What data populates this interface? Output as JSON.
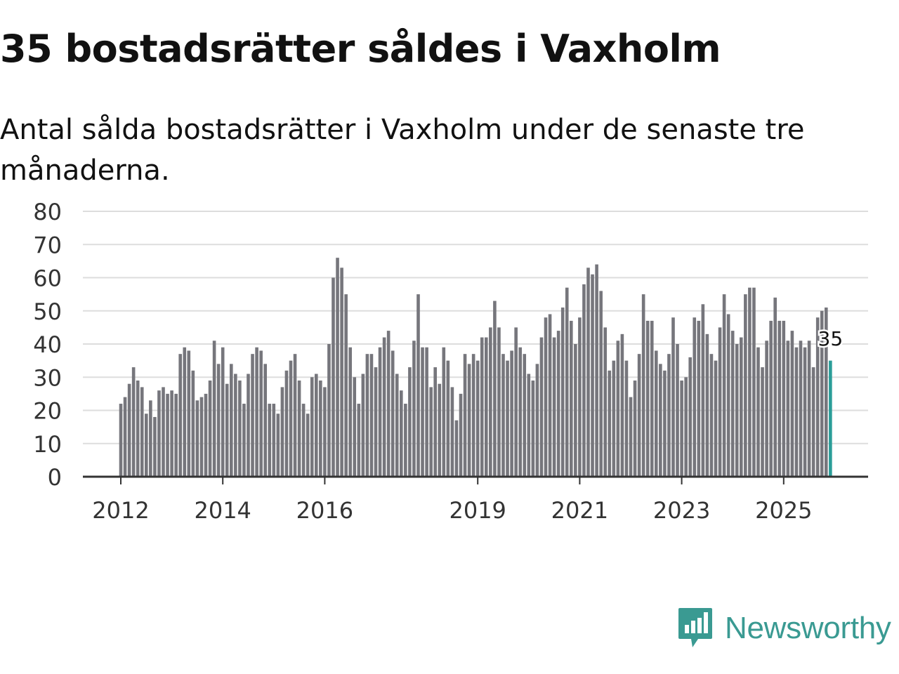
{
  "header": {
    "title": "35 bostadsrätter såldes i Vaxholm",
    "subtitle": "Antal sålda bostadsrätter i Vaxholm under de senaste tre månaderna."
  },
  "colors": {
    "bar": "#76767c",
    "highlight": "#2a9d98",
    "grid": "#dddddd",
    "axis": "#333333",
    "brand": "#3a9a92"
  },
  "chart_data": {
    "type": "bar",
    "title": "35 bostadsrätter såldes i Vaxholm",
    "subtitle": "Antal sålda bostadsrätter i Vaxholm under de senaste tre månaderna.",
    "xlabel": "",
    "ylabel": "",
    "ylim": [
      0,
      80
    ],
    "yticks": [
      0,
      10,
      20,
      30,
      40,
      50,
      60,
      70,
      80
    ],
    "x_start": "2012-01",
    "x_step": "1 month",
    "xtick_labels": [
      {
        "label": "2012",
        "index": 0
      },
      {
        "label": "2014",
        "index": 24
      },
      {
        "label": "2016",
        "index": 48
      },
      {
        "label": "2019",
        "index": 84
      },
      {
        "label": "2021",
        "index": 108
      },
      {
        "label": "2023",
        "index": 132
      },
      {
        "label": "2025",
        "index": 156
      }
    ],
    "values": [
      22,
      24,
      28,
      33,
      29,
      27,
      19,
      23,
      18,
      26,
      27,
      25,
      26,
      25,
      37,
      39,
      38,
      32,
      23,
      24,
      25,
      29,
      41,
      34,
      39,
      28,
      34,
      31,
      29,
      22,
      31,
      37,
      39,
      38,
      34,
      22,
      22,
      19,
      27,
      32,
      35,
      37,
      29,
      22,
      19,
      30,
      31,
      29,
      27,
      40,
      60,
      66,
      63,
      55,
      39,
      30,
      22,
      31,
      37,
      37,
      33,
      39,
      42,
      44,
      38,
      31,
      26,
      22,
      33,
      41,
      55,
      39,
      39,
      27,
      33,
      28,
      39,
      35,
      27,
      17,
      25,
      37,
      34,
      37,
      35,
      42,
      42,
      45,
      53,
      45,
      37,
      35,
      38,
      45,
      39,
      37,
      31,
      29,
      34,
      42,
      48,
      49,
      42,
      44,
      51,
      57,
      47,
      40,
      48,
      58,
      63,
      61,
      64,
      56,
      45,
      32,
      35,
      41,
      43,
      35,
      24,
      29,
      37,
      55,
      47,
      47,
      38,
      34,
      32,
      37,
      48,
      40,
      29,
      30,
      36,
      48,
      47,
      52,
      43,
      37,
      35,
      45,
      55,
      49,
      44,
      40,
      42,
      55,
      57,
      57,
      39,
      33,
      41,
      47,
      54,
      47,
      47,
      41,
      44,
      39,
      41,
      39,
      41,
      33,
      48,
      50,
      51,
      35
    ],
    "highlight": {
      "index": 167,
      "value": 35,
      "label": "35"
    }
  },
  "brand": {
    "name": "Newsworthy",
    "icon": "newsworthy-logo-icon"
  }
}
